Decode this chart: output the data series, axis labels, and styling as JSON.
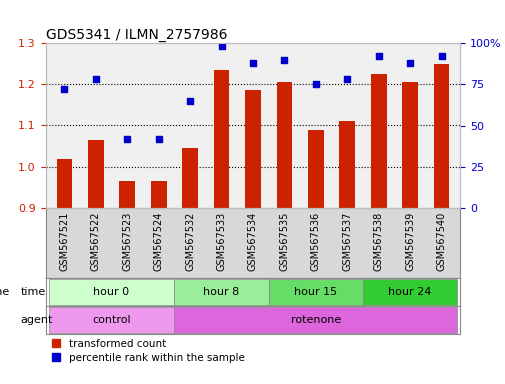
{
  "title": "GDS5341 / ILMN_2757986",
  "samples": [
    "GSM567521",
    "GSM567522",
    "GSM567523",
    "GSM567524",
    "GSM567532",
    "GSM567533",
    "GSM567534",
    "GSM567535",
    "GSM567536",
    "GSM567537",
    "GSM567538",
    "GSM567539",
    "GSM567540"
  ],
  "bar_values": [
    1.02,
    1.065,
    0.965,
    0.965,
    1.045,
    1.235,
    1.185,
    1.205,
    1.09,
    1.11,
    1.225,
    1.205,
    1.25
  ],
  "dot_values": [
    72,
    78,
    42,
    42,
    65,
    98,
    88,
    90,
    75,
    78,
    92,
    88,
    92
  ],
  "ylim_left": [
    0.9,
    1.3
  ],
  "ylim_right": [
    0,
    100
  ],
  "yticks_left": [
    0.9,
    1.0,
    1.1,
    1.2,
    1.3
  ],
  "yticks_right": [
    0,
    25,
    50,
    75,
    100
  ],
  "bar_color": "#cc2200",
  "dot_color": "#0000cc",
  "background_color": "#ffffff",
  "plot_bg_color": "#f0f0f0",
  "grid_color": "#000000",
  "time_groups": [
    {
      "label": "hour 0",
      "start": 0,
      "end": 4,
      "color": "#ccffcc"
    },
    {
      "label": "hour 8",
      "start": 4,
      "end": 7,
      "color": "#99ee99"
    },
    {
      "label": "hour 15",
      "start": 7,
      "end": 10,
      "color": "#66dd66"
    },
    {
      "label": "hour 24",
      "start": 10,
      "end": 13,
      "color": "#33cc33"
    }
  ],
  "agent_groups": [
    {
      "label": "control",
      "start": 0,
      "end": 4,
      "color": "#ee99ee"
    },
    {
      "label": "rotenone",
      "start": 4,
      "end": 13,
      "color": "#dd66dd"
    }
  ],
  "legend_red": "transformed count",
  "legend_blue": "percentile rank within the sample",
  "left_ylabel_color": "#cc2200",
  "right_ylabel_color": "#0000cc"
}
